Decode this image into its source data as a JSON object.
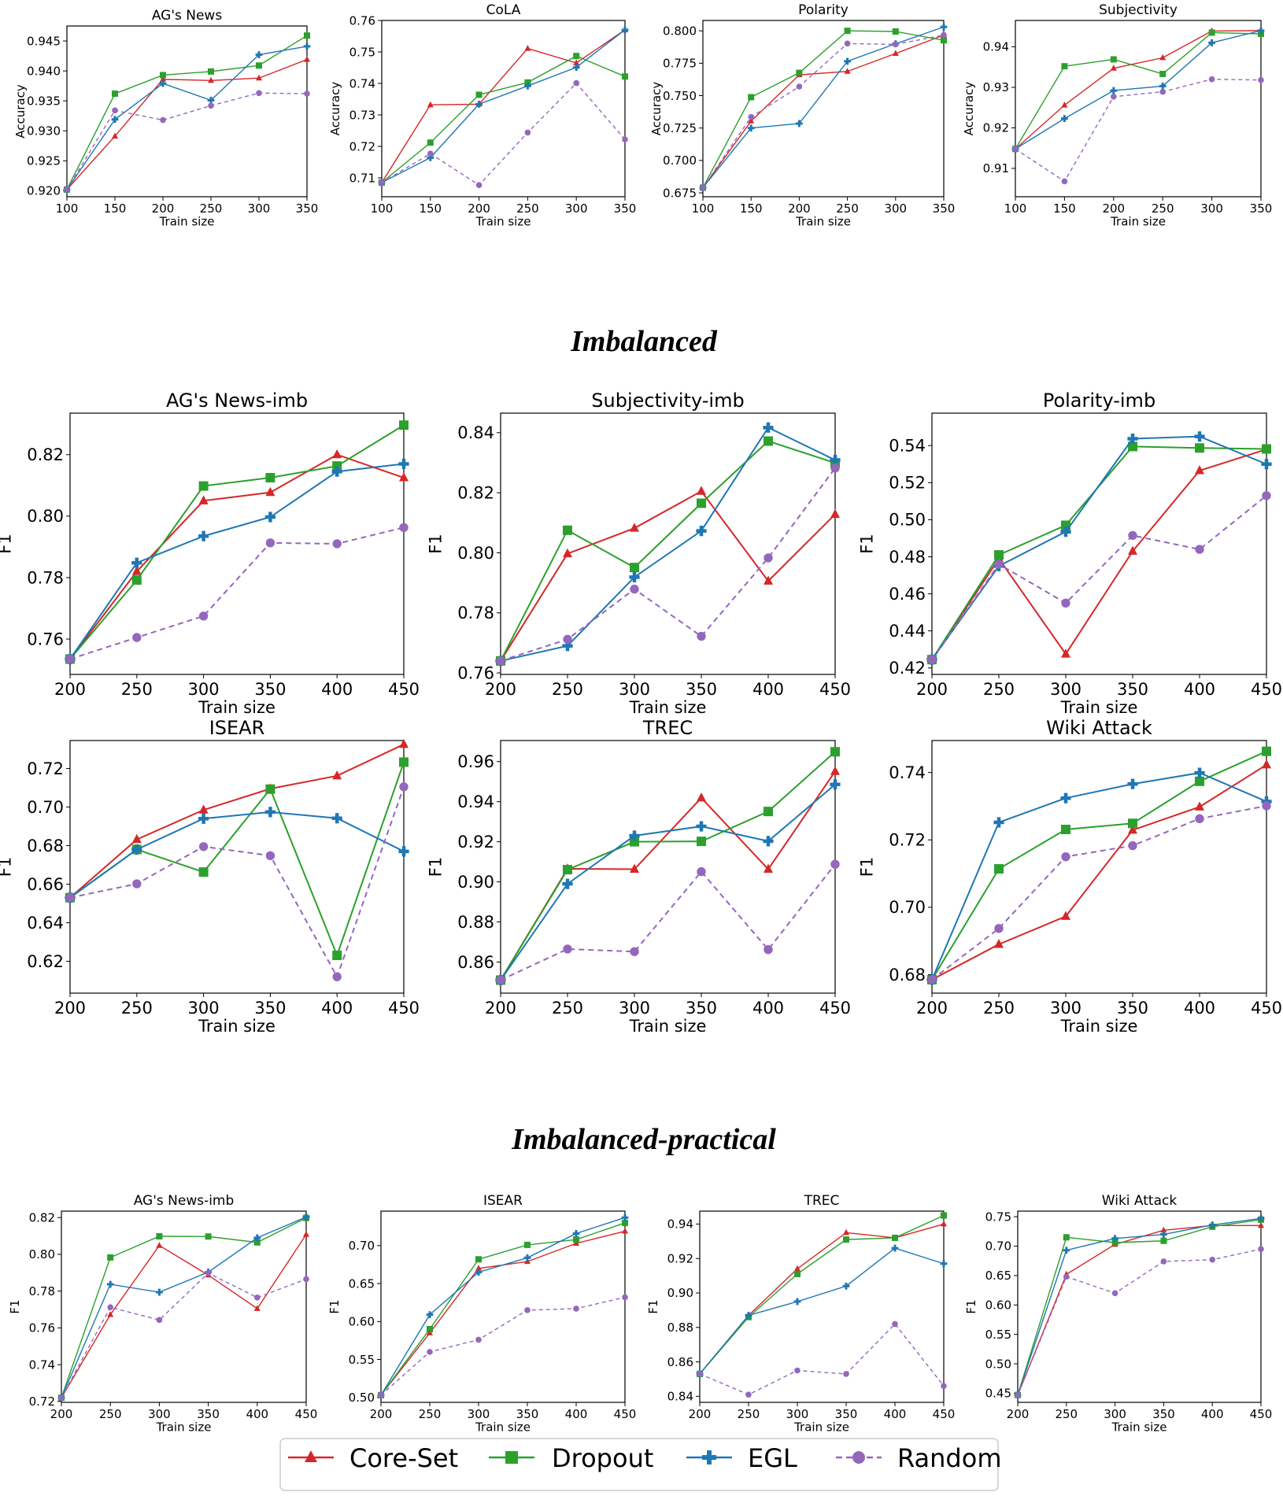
{
  "section_titles": [
    "Imbalanced",
    "Imbalanced-practical"
  ],
  "legend": [
    {
      "label": "Core-Set",
      "key": "coreset"
    },
    {
      "label": "Dropout",
      "key": "dropout"
    },
    {
      "label": "EGL",
      "key": "egl"
    },
    {
      "label": "Random",
      "key": "random"
    }
  ],
  "colors": {
    "coreset": "#d62728",
    "dropout": "#2ca02c",
    "egl": "#1f77b4",
    "random": "#9467bd"
  },
  "chart_data": [
    {
      "type": "line",
      "title": "AG's News",
      "xlabel": "Train size",
      "ylabel": "Accuracy",
      "x": [
        100,
        150,
        200,
        250,
        300,
        350
      ],
      "xlim": [
        100,
        350
      ],
      "ylim": [
        0.919,
        0.9475
      ],
      "yticks": [
        "0.920",
        "0.925",
        "0.930",
        "0.935",
        "0.940",
        "0.945"
      ],
      "ytick_values": [
        0.92,
        0.925,
        0.93,
        0.935,
        0.94,
        0.945
      ],
      "series": [
        {
          "name": "Core-Set",
          "values": [
            0.9202,
            0.9291,
            0.9386,
            0.9384,
            0.9388,
            0.9419
          ]
        },
        {
          "name": "Dropout",
          "values": [
            0.9202,
            0.9362,
            0.9393,
            0.9399,
            0.9409,
            0.9459
          ]
        },
        {
          "name": "EGL",
          "values": [
            0.9202,
            0.9319,
            0.9379,
            0.9351,
            0.9427,
            0.9441
          ]
        },
        {
          "name": "Random",
          "values": [
            0.9202,
            0.9334,
            0.9318,
            0.9342,
            0.9363,
            0.9362
          ]
        }
      ]
    },
    {
      "type": "line",
      "title": "CoLA",
      "xlabel": "Train size",
      "ylabel": "Accuracy",
      "x": [
        100,
        150,
        200,
        250,
        300,
        350
      ],
      "xlim": [
        100,
        350
      ],
      "ylim": [
        0.704,
        0.76
      ],
      "yticks": [
        "0.71",
        "0.72",
        "0.73",
        "0.74",
        "0.75",
        "0.76"
      ],
      "ytick_values": [
        0.71,
        0.72,
        0.73,
        0.74,
        0.75,
        0.76
      ],
      "series": [
        {
          "name": "Core-Set",
          "values": [
            0.7085,
            0.7332,
            0.7334,
            0.7511,
            0.7465,
            0.757
          ]
        },
        {
          "name": "Dropout",
          "values": [
            0.7085,
            0.7212,
            0.7364,
            0.7403,
            0.7487,
            0.7422
          ]
        },
        {
          "name": "EGL",
          "values": [
            0.7085,
            0.7164,
            0.7334,
            0.7392,
            0.7451,
            0.757
          ]
        },
        {
          "name": "Random",
          "values": [
            0.7085,
            0.7177,
            0.7077,
            0.7244,
            0.7401,
            0.7222
          ]
        }
      ]
    },
    {
      "type": "line",
      "title": "Polarity",
      "xlabel": "Train size",
      "ylabel": "Accuracy",
      "x": [
        100,
        150,
        200,
        250,
        300,
        350
      ],
      "xlim": [
        100,
        350
      ],
      "ylim": [
        0.672,
        0.808
      ],
      "yticks": [
        "0.675",
        "0.700",
        "0.725",
        "0.750",
        "0.775",
        "0.800"
      ],
      "ytick_values": [
        0.675,
        0.7,
        0.725,
        0.75,
        0.775,
        0.8
      ],
      "series": [
        {
          "name": "Core-Set",
          "values": [
            0.679,
            0.7304,
            0.766,
            0.7687,
            0.7825,
            0.7967
          ]
        },
        {
          "name": "Dropout",
          "values": [
            0.679,
            0.7488,
            0.7676,
            0.8,
            0.7995,
            0.7927
          ]
        },
        {
          "name": "EGL",
          "values": [
            0.679,
            0.725,
            0.7285,
            0.7765,
            0.79,
            0.803
          ]
        },
        {
          "name": "Random",
          "values": [
            0.679,
            0.7335,
            0.757,
            0.7902,
            0.7895,
            0.7967
          ]
        }
      ]
    },
    {
      "type": "line",
      "title": "Subjectivity",
      "xlabel": "Train size",
      "ylabel": "Accuracy",
      "x": [
        100,
        150,
        200,
        250,
        300,
        350
      ],
      "xlim": [
        100,
        350
      ],
      "ylim": [
        0.903,
        0.9465
      ],
      "yticks": [
        "0.91",
        "0.92",
        "0.93",
        "0.94"
      ],
      "ytick_values": [
        0.91,
        0.92,
        0.93,
        0.94
      ],
      "series": [
        {
          "name": "Core-Set",
          "values": [
            0.9148,
            0.9256,
            0.9347,
            0.9373,
            0.9439,
            0.944
          ]
        },
        {
          "name": "Dropout",
          "values": [
            0.9148,
            0.9352,
            0.9369,
            0.9333,
            0.9435,
            0.9432
          ]
        },
        {
          "name": "EGL",
          "values": [
            0.9148,
            0.9223,
            0.9292,
            0.9303,
            0.941,
            0.944
          ]
        },
        {
          "name": "Random",
          "values": [
            0.9148,
            0.9068,
            0.9277,
            0.9289,
            0.932,
            0.9318
          ]
        }
      ]
    },
    {
      "type": "line",
      "title": "AG's News-imb",
      "xlabel": "Train size",
      "ylabel": "F1",
      "x": [
        200,
        250,
        300,
        350,
        400,
        450
      ],
      "xlim": [
        200,
        450
      ],
      "ylim": [
        0.7485,
        0.8335
      ],
      "yticks": [
        "0.76",
        "0.78",
        "0.80",
        "0.82"
      ],
      "ytick_values": [
        0.76,
        0.78,
        0.8,
        0.82
      ],
      "series": [
        {
          "name": "Core-Set",
          "values": [
            0.7535,
            0.782,
            0.805,
            0.8077,
            0.82,
            0.8125
          ]
        },
        {
          "name": "Dropout",
          "values": [
            0.7535,
            0.7792,
            0.8098,
            0.8125,
            0.8163,
            0.8296
          ]
        },
        {
          "name": "EGL",
          "values": [
            0.7535,
            0.7848,
            0.7935,
            0.7997,
            0.8145,
            0.817
          ]
        },
        {
          "name": "Random",
          "values": [
            0.7535,
            0.7605,
            0.7675,
            0.7913,
            0.791,
            0.7963
          ]
        }
      ]
    },
    {
      "type": "line",
      "title": "Subjectivity-imb",
      "xlabel": "Train size",
      "ylabel": "F1",
      "x": [
        200,
        250,
        300,
        350,
        400,
        450
      ],
      "xlim": [
        200,
        450
      ],
      "ylim": [
        0.7595,
        0.8465
      ],
      "yticks": [
        "0.76",
        "0.78",
        "0.80",
        "0.82",
        "0.84"
      ],
      "ytick_values": [
        0.76,
        0.78,
        0.8,
        0.82,
        0.84
      ],
      "series": [
        {
          "name": "Core-Set",
          "values": [
            0.764,
            0.7997,
            0.8082,
            0.8205,
            0.7906,
            0.8128
          ]
        },
        {
          "name": "Dropout",
          "values": [
            0.764,
            0.8075,
            0.7951,
            0.8165,
            0.8372,
            0.8299
          ]
        },
        {
          "name": "EGL",
          "values": [
            0.764,
            0.769,
            0.7919,
            0.8073,
            0.8417,
            0.8309
          ]
        },
        {
          "name": "Random",
          "values": [
            0.764,
            0.7712,
            0.7879,
            0.7722,
            0.7983,
            0.8282
          ]
        }
      ]
    },
    {
      "type": "line",
      "title": "Polarity-imb",
      "xlabel": "Train size",
      "ylabel": "F1",
      "x": [
        200,
        250,
        300,
        350,
        400,
        450
      ],
      "xlim": [
        200,
        450
      ],
      "ylim": [
        0.4165,
        0.5575
      ],
      "yticks": [
        "0.42",
        "0.44",
        "0.46",
        "0.48",
        "0.50",
        "0.52",
        "0.54"
      ],
      "ytick_values": [
        0.42,
        0.44,
        0.46,
        0.48,
        0.5,
        0.52,
        0.54
      ],
      "series": [
        {
          "name": "Core-Set",
          "values": [
            0.4245,
            0.479,
            0.4275,
            0.483,
            0.5265,
            0.538
          ]
        },
        {
          "name": "Dropout",
          "values": [
            0.4245,
            0.481,
            0.497,
            0.5395,
            0.5387,
            0.5382
          ]
        },
        {
          "name": "EGL",
          "values": [
            0.4245,
            0.475,
            0.4935,
            0.5437,
            0.5449,
            0.53
          ]
        },
        {
          "name": "Random",
          "values": [
            0.4245,
            0.476,
            0.455,
            0.4915,
            0.484,
            0.513
          ]
        }
      ]
    },
    {
      "type": "line",
      "title": "ISEAR",
      "xlabel": "Train size",
      "ylabel": "F1",
      "x": [
        200,
        250,
        300,
        350,
        400,
        450
      ],
      "xlim": [
        200,
        450
      ],
      "ylim": [
        0.6035,
        0.7345
      ],
      "yticks": [
        "0.62",
        "0.64",
        "0.66",
        "0.68",
        "0.70",
        "0.72"
      ],
      "ytick_values": [
        0.62,
        0.64,
        0.66,
        0.68,
        0.7,
        0.72
      ],
      "series": [
        {
          "name": "Core-Set",
          "values": [
            0.653,
            0.6832,
            0.6985,
            0.7095,
            0.7162,
            0.7325
          ]
        },
        {
          "name": "Dropout",
          "values": [
            0.653,
            0.678,
            0.6663,
            0.7093,
            0.6231,
            0.7233
          ]
        },
        {
          "name": "EGL",
          "values": [
            0.653,
            0.678,
            0.694,
            0.6974,
            0.6942,
            0.677
          ]
        },
        {
          "name": "Random",
          "values": [
            0.653,
            0.6602,
            0.6795,
            0.6748,
            0.612,
            0.7105
          ]
        }
      ]
    },
    {
      "type": "line",
      "title": "TREC",
      "xlabel": "Train size",
      "ylabel": "F1",
      "x": [
        200,
        250,
        300,
        350,
        400,
        450
      ],
      "xlim": [
        200,
        450
      ],
      "ylim": [
        0.8445,
        0.9705
      ],
      "yticks": [
        "0.86",
        "0.88",
        "0.90",
        "0.92",
        "0.94",
        "0.96"
      ],
      "ytick_values": [
        0.86,
        0.88,
        0.9,
        0.92,
        0.94,
        0.96
      ],
      "series": [
        {
          "name": "Core-Set",
          "values": [
            0.851,
            0.9065,
            0.9063,
            0.9419,
            0.9063,
            0.9551
          ]
        },
        {
          "name": "Dropout",
          "values": [
            0.851,
            0.9061,
            0.92,
            0.9202,
            0.9351,
            0.9649
          ]
        },
        {
          "name": "EGL",
          "values": [
            0.851,
            0.899,
            0.923,
            0.9277,
            0.9203,
            0.9486
          ]
        },
        {
          "name": "Random",
          "values": [
            0.851,
            0.8665,
            0.8652,
            0.9051,
            0.8662,
            0.9088
          ]
        }
      ]
    },
    {
      "type": "line",
      "title": "Wiki Attack",
      "xlabel": "Train size",
      "ylabel": "F1",
      "x": [
        200,
        250,
        300,
        350,
        400,
        450
      ],
      "xlim": [
        200,
        450
      ],
      "ylim": [
        0.6745,
        0.7495
      ],
      "yticks": [
        "0.68",
        "0.70",
        "0.72",
        "0.74"
      ],
      "ytick_values": [
        0.68,
        0.7,
        0.72,
        0.74
      ],
      "series": [
        {
          "name": "Core-Set",
          "values": [
            0.6785,
            0.689,
            0.6973,
            0.7229,
            0.7298,
            0.7423
          ]
        },
        {
          "name": "Dropout",
          "values": [
            0.6785,
            0.7114,
            0.7231,
            0.7249,
            0.7374,
            0.7463
          ]
        },
        {
          "name": "EGL",
          "values": [
            0.6785,
            0.7252,
            0.7324,
            0.7366,
            0.7399,
            0.7314
          ]
        },
        {
          "name": "Random",
          "values": [
            0.6785,
            0.6937,
            0.715,
            0.7183,
            0.7263,
            0.7301
          ]
        }
      ]
    },
    {
      "type": "line",
      "title": "AG's News-imb",
      "xlabel": "Train size",
      "ylabel": "F1",
      "x": [
        200,
        250,
        300,
        350,
        400,
        450
      ],
      "xlim": [
        200,
        450
      ],
      "ylim": [
        0.7195,
        0.8235
      ],
      "yticks": [
        "0.72",
        "0.74",
        "0.76",
        "0.78",
        "0.80",
        "0.82"
      ],
      "ytick_values": [
        0.72,
        0.74,
        0.76,
        0.78,
        0.8,
        0.82
      ],
      "series": [
        {
          "name": "Core-Set",
          "values": [
            0.722,
            0.7672,
            0.8048,
            0.7887,
            0.7705,
            0.8108
          ]
        },
        {
          "name": "Dropout",
          "values": [
            0.722,
            0.7983,
            0.8098,
            0.8097,
            0.8065,
            0.8198
          ]
        },
        {
          "name": "EGL",
          "values": [
            0.722,
            0.7837,
            0.7794,
            0.7903,
            0.809,
            0.8203
          ]
        },
        {
          "name": "Random",
          "values": [
            0.722,
            0.7712,
            0.7643,
            0.7898,
            0.7765,
            0.7865
          ]
        }
      ]
    },
    {
      "type": "line",
      "title": "ISEAR",
      "xlabel": "Train size",
      "ylabel": "F1",
      "x": [
        200,
        250,
        300,
        350,
        400,
        450
      ],
      "xlim": [
        200,
        450
      ],
      "ylim": [
        0.4935,
        0.7455
      ],
      "yticks": [
        "0.50",
        "0.55",
        "0.60",
        "0.65",
        "0.70"
      ],
      "ytick_values": [
        0.5,
        0.55,
        0.6,
        0.65,
        0.7
      ],
      "series": [
        {
          "name": "Core-Set",
          "values": [
            0.503,
            0.585,
            0.67,
            0.679,
            0.703,
            0.719
          ]
        },
        {
          "name": "Dropout",
          "values": [
            0.503,
            0.59,
            0.682,
            0.701,
            0.708,
            0.73
          ]
        },
        {
          "name": "EGL",
          "values": [
            0.503,
            0.609,
            0.665,
            0.684,
            0.716,
            0.737
          ]
        },
        {
          "name": "Random",
          "values": [
            0.503,
            0.56,
            0.576,
            0.615,
            0.617,
            0.632
          ]
        }
      ]
    },
    {
      "type": "line",
      "title": "TREC",
      "xlabel": "Train size",
      "ylabel": "F1",
      "x": [
        200,
        250,
        300,
        350,
        400,
        450
      ],
      "xlim": [
        200,
        450
      ],
      "ylim": [
        0.8365,
        0.9475
      ],
      "yticks": [
        "0.84",
        "0.86",
        "0.88",
        "0.90",
        "0.92",
        "0.94"
      ],
      "ytick_values": [
        0.84,
        0.86,
        0.88,
        0.9,
        0.92,
        0.94
      ],
      "series": [
        {
          "name": "Core-Set",
          "values": [
            0.853,
            0.887,
            0.914,
            0.935,
            0.932,
            0.94
          ]
        },
        {
          "name": "Dropout",
          "values": [
            0.853,
            0.886,
            0.911,
            0.931,
            0.932,
            0.945
          ]
        },
        {
          "name": "EGL",
          "values": [
            0.853,
            0.887,
            0.895,
            0.904,
            0.926,
            0.917
          ]
        },
        {
          "name": "Random",
          "values": [
            0.853,
            0.841,
            0.855,
            0.853,
            0.882,
            0.846
          ]
        }
      ]
    },
    {
      "type": "line",
      "title": "Wiki Attack",
      "xlabel": "Train size",
      "ylabel": "F1",
      "x": [
        200,
        250,
        300,
        350,
        400,
        450
      ],
      "xlim": [
        200,
        450
      ],
      "ylim": [
        0.4345,
        0.7595
      ],
      "yticks": [
        "0.45",
        "0.50",
        "0.55",
        "0.60",
        "0.65",
        "0.70",
        "0.75"
      ],
      "ytick_values": [
        0.45,
        0.5,
        0.55,
        0.6,
        0.65,
        0.7,
        0.75
      ],
      "series": [
        {
          "name": "Core-Set",
          "values": [
            0.447,
            0.652,
            0.703,
            0.727,
            0.735,
            0.735
          ]
        },
        {
          "name": "Dropout",
          "values": [
            0.447,
            0.715,
            0.706,
            0.709,
            0.733,
            0.745
          ]
        },
        {
          "name": "EGL",
          "values": [
            0.447,
            0.693,
            0.713,
            0.72,
            0.736,
            0.747
          ]
        },
        {
          "name": "Random",
          "values": [
            0.447,
            0.648,
            0.62,
            0.674,
            0.677,
            0.695
          ]
        }
      ]
    }
  ]
}
